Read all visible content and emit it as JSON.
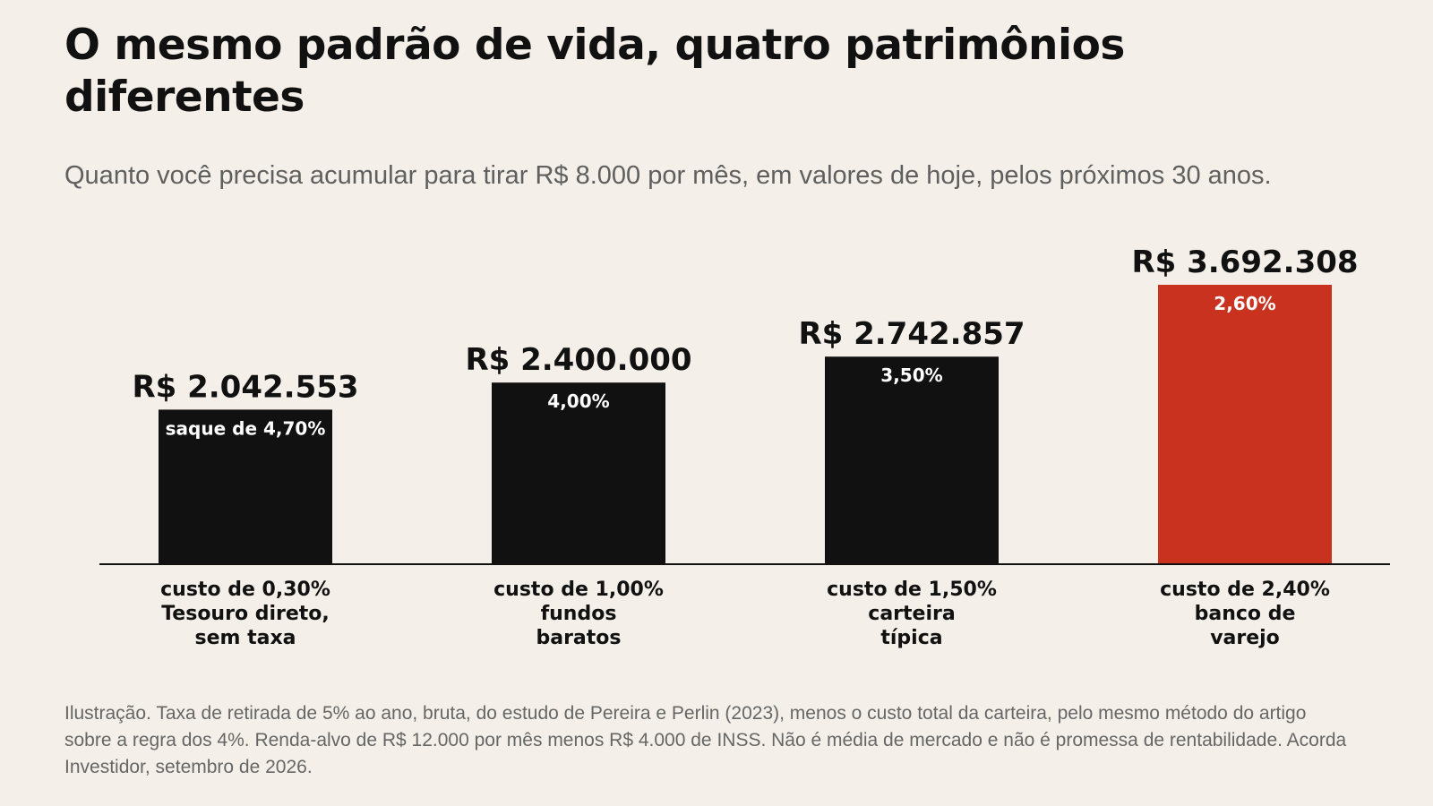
{
  "title": "O mesmo padrão de vida, quatro patrimônios diferentes",
  "subtitle": "Quanto você precisa acumular para tirar R$ 8.000 por mês, em valores de hoje, pelos próximos 30 anos.",
  "footnote": "Ilustração. Taxa de retirada de 5% ao ano, bruta, do estudo de Pereira e Perlin (2023), menos o custo total da carteira, pelo mesmo método do artigo sobre a regra dos 4%. Renda-alvo de R$ 12.000 por mês menos R$ 4.000 de INSS. Não é média de mercado e não é promessa de rentabilidade. Acorda Investidor, setembro de 2026.",
  "colors": {
    "background": "#f4f0e9",
    "bar_default": "#111111",
    "bar_highlight": "#c8321e",
    "inside_label": "#ffffff"
  },
  "chart_data": {
    "type": "bar",
    "categories": [
      [
        "custo de 0,30%",
        "Tesouro direto,",
        "sem taxa"
      ],
      [
        "custo de 1,00%",
        "fundos",
        "baratos"
      ],
      [
        "custo de 1,50%",
        "carteira",
        "típica"
      ],
      [
        "custo de 2,40%",
        "banco de",
        "varejo"
      ]
    ],
    "values": [
      2042553,
      2400000,
      2742857,
      3692308
    ],
    "value_labels": [
      "R$ 2.042.553",
      "R$ 2.400.000",
      "R$ 2.742.857",
      "R$ 3.692.308"
    ],
    "inside_labels": [
      "saque de 4,70%",
      "4,00%",
      "3,50%",
      "2,60%"
    ],
    "highlight_index": 3,
    "ylim": [
      0,
      3692308
    ],
    "grid": false,
    "legend": "none"
  }
}
